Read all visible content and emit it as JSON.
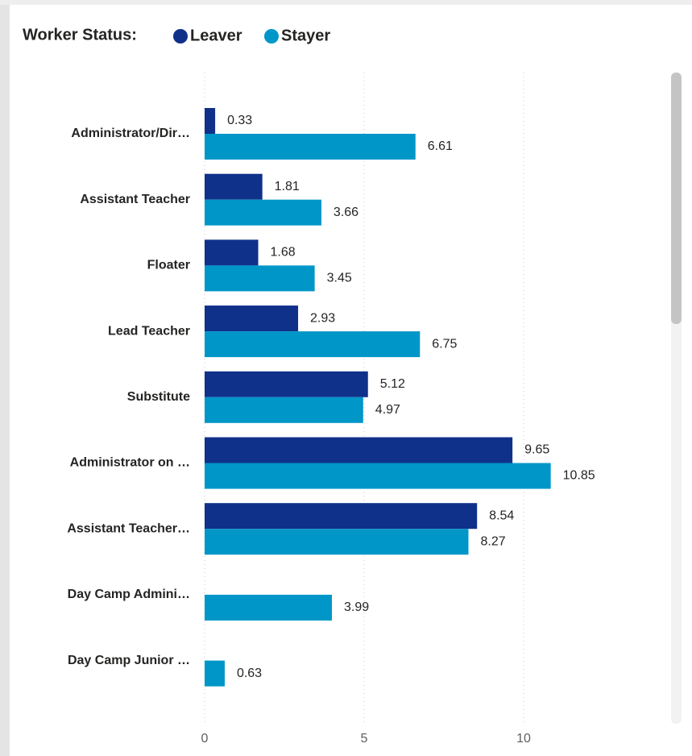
{
  "chart_data": {
    "type": "bar",
    "orientation": "horizontal",
    "legend_title": "Worker Status:",
    "categories": [
      "Administrator/Dir…",
      "Assistant Teacher",
      "Floater",
      "Lead Teacher",
      "Substitute",
      "Administrator on …",
      "Assistant Teacher…",
      "Day Camp Admini…",
      "Day Camp Junior …"
    ],
    "series": [
      {
        "name": "Leaver",
        "color": "#10318a",
        "values": [
          0.33,
          1.81,
          1.68,
          2.93,
          5.12,
          9.65,
          8.54,
          null,
          null
        ]
      },
      {
        "name": "Stayer",
        "color": "#0096c8",
        "values": [
          6.61,
          3.66,
          3.45,
          6.75,
          4.97,
          10.85,
          8.27,
          3.99,
          0.63
        ]
      }
    ],
    "xlim": [
      0,
      14.5
    ],
    "xticks": [
      0,
      5,
      10
    ],
    "grid": true
  }
}
